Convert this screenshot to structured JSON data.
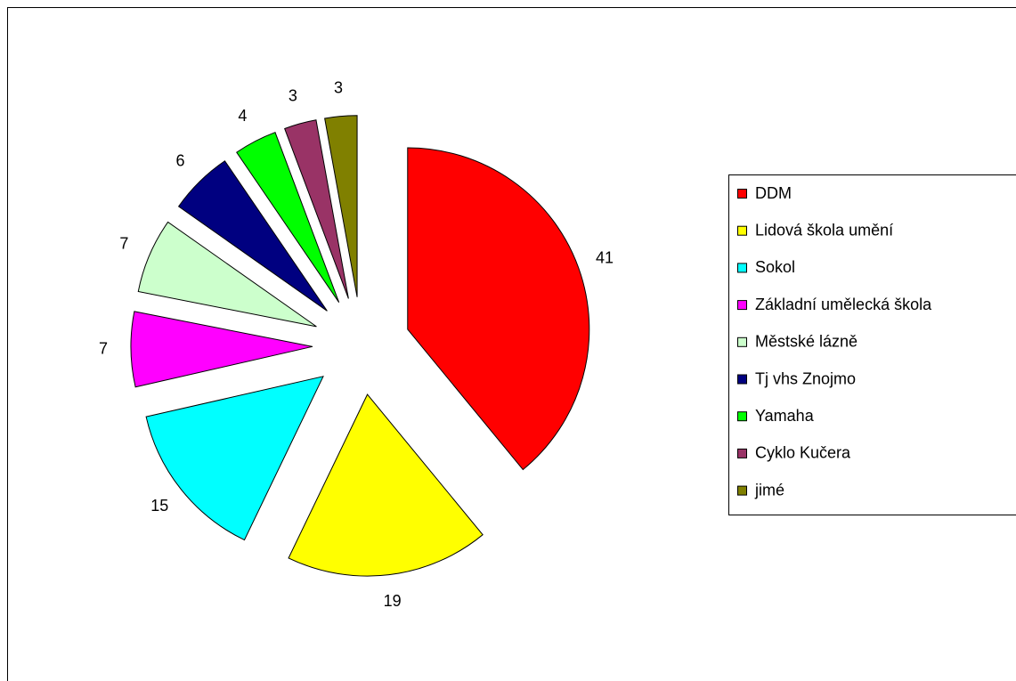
{
  "chart_data": {
    "type": "pie",
    "categories": [
      "DDM",
      "Lidová škola umění",
      "Sokol",
      "Základní umělecká škola",
      "Městské lázně",
      "Tj vhs Znojmo",
      "Yamaha",
      "Cyklo Kučera",
      "jimé"
    ],
    "values": [
      41,
      19,
      15,
      7,
      7,
      6,
      4,
      3,
      3
    ],
    "colors": [
      "#ff0000",
      "#ffff00",
      "#00ffff",
      "#ff00ff",
      "#ccffcc",
      "#000080",
      "#00ff00",
      "#993366",
      "#808000"
    ],
    "legend": "right"
  }
}
